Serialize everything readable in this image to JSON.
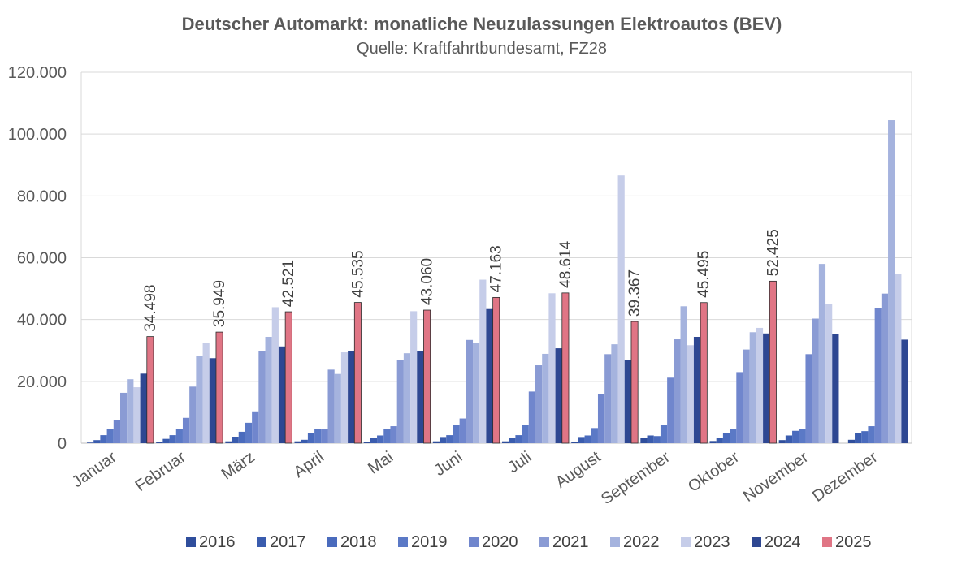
{
  "chart_data": {
    "type": "bar",
    "title": "Deutscher Automarkt: monatliche Neuzulassungen Elektroautos (BEV)",
    "subtitle": "Quelle: Kraftfahrtbundesamt, FZ28",
    "xlabel": "",
    "ylabel": "",
    "ylim": [
      0,
      120000
    ],
    "yticks": [
      0,
      20000,
      40000,
      60000,
      80000,
      100000,
      120000
    ],
    "ytick_labels": [
      "0",
      "20.000",
      "40.000",
      "60.000",
      "80.000",
      "100.000",
      "120.000"
    ],
    "grid": true,
    "legend_position": "bottom",
    "categories": [
      "Januar",
      "Februar",
      "März",
      "April",
      "Mai",
      "Juni",
      "Juli",
      "August",
      "September",
      "Oktober",
      "November",
      "Dezember"
    ],
    "series": [
      {
        "name": "2016",
        "color": "#2f4e9c",
        "values": [
          200,
          300,
          600,
          600,
          500,
          600,
          600,
          500,
          1600,
          700,
          1000,
          1100
        ]
      },
      {
        "name": "2017",
        "color": "#3a5cae",
        "values": [
          1000,
          1400,
          2100,
          1100,
          1600,
          2000,
          1600,
          2000,
          2500,
          1800,
          2500,
          3300
        ]
      },
      {
        "name": "2018",
        "color": "#4a6bbd",
        "values": [
          2600,
          2600,
          3700,
          3200,
          2500,
          2600,
          2600,
          2500,
          2300,
          3200,
          4000,
          3900
        ]
      },
      {
        "name": "2019",
        "color": "#5b79c6",
        "values": [
          4500,
          4500,
          6600,
          4500,
          4500,
          5800,
          5800,
          4900,
          6000,
          4600,
          4500,
          5500
        ]
      },
      {
        "name": "2020",
        "color": "#7086cd",
        "values": [
          7400,
          8200,
          10300,
          4500,
          5500,
          8000,
          16700,
          16000,
          21200,
          23000,
          28800,
          43700
        ]
      },
      {
        "name": "2021",
        "color": "#8a9bd4",
        "values": [
          16300,
          18300,
          29900,
          23800,
          26800,
          33400,
          25200,
          28800,
          33600,
          30300,
          40300,
          48400
        ]
      },
      {
        "name": "2022",
        "color": "#a5b3de",
        "values": [
          20700,
          28300,
          34400,
          22400,
          29100,
          32300,
          28900,
          32000,
          44300,
          35900,
          58000,
          104500
        ]
      },
      {
        "name": "2023",
        "color": "#c6cde9",
        "values": [
          18100,
          32500,
          44000,
          29400,
          42700,
          52900,
          48500,
          86600,
          31700,
          37300,
          44900,
          54700
        ]
      },
      {
        "name": "2024",
        "color": "#2e4792",
        "values": [
          22500,
          27500,
          31300,
          29700,
          29700,
          43400,
          30700,
          27000,
          34400,
          35500,
          35200,
          33500
        ]
      },
      {
        "name": "2025",
        "color": "#e07585",
        "values": [
          34498,
          35949,
          42521,
          45535,
          43060,
          47163,
          48614,
          39367,
          45495,
          52425,
          null,
          null
        ]
      }
    ],
    "data_labels": {
      "series": "2025",
      "labels": [
        "34.498",
        "35.949",
        "42.521",
        "45.535",
        "43.060",
        "47.163",
        "48.614",
        "39.367",
        "45.495",
        "52.425"
      ]
    }
  }
}
